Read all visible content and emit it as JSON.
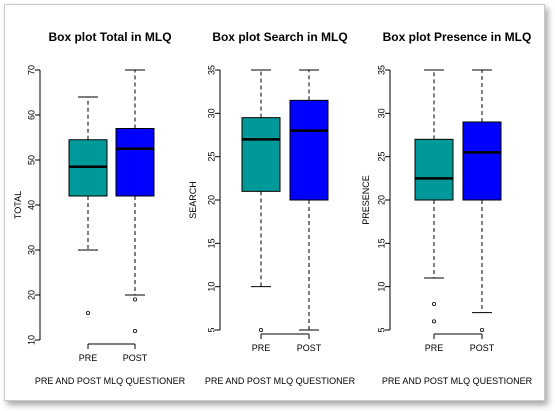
{
  "colors": {
    "pre": "#009999",
    "post": "#0000ff",
    "frame_border": "#c9c9c9"
  },
  "chart_data": [
    {
      "type": "boxplot",
      "title": "Box plot Total in MLQ",
      "xlabel": "PRE AND POST MLQ QUESTIONER",
      "ylabel": "TOTAL",
      "ylim": [
        10,
        70
      ],
      "yticks": [
        10,
        20,
        30,
        40,
        50,
        60,
        70
      ],
      "categories": [
        "PRE",
        "POST"
      ],
      "series": [
        {
          "name": "PRE",
          "min": 30,
          "q1": 42,
          "median": 48.5,
          "q3": 54.5,
          "max": 64,
          "outliers": [
            16
          ]
        },
        {
          "name": "POST",
          "min": 20,
          "q1": 42,
          "median": 52.5,
          "q3": 57,
          "max": 70,
          "outliers": [
            19,
            12
          ]
        }
      ]
    },
    {
      "type": "boxplot",
      "title": "Box plot Search in MLQ",
      "xlabel": "PRE AND POST MLQ QUESTIONER",
      "ylabel": "SEARCH",
      "ylim": [
        5,
        35
      ],
      "yticks": [
        5,
        10,
        15,
        20,
        25,
        30,
        35
      ],
      "categories": [
        "PRE",
        "POST"
      ],
      "series": [
        {
          "name": "PRE",
          "min": 10,
          "q1": 21,
          "median": 27,
          "q3": 29.5,
          "max": 35,
          "outliers": [
            5
          ]
        },
        {
          "name": "POST",
          "min": 5,
          "q1": 20,
          "median": 28,
          "q3": 31.5,
          "max": 35,
          "outliers": []
        }
      ]
    },
    {
      "type": "boxplot",
      "title": "Box plot Presence in MLQ",
      "xlabel": "PRE AND POST MLQ QUESTIONER",
      "ylabel": "PRESENCE",
      "ylim": [
        5,
        35
      ],
      "yticks": [
        5,
        10,
        15,
        20,
        25,
        30,
        35
      ],
      "categories": [
        "PRE",
        "POST"
      ],
      "series": [
        {
          "name": "PRE",
          "min": 11,
          "q1": 20,
          "median": 22.5,
          "q3": 27,
          "max": 35,
          "outliers": [
            8,
            6
          ]
        },
        {
          "name": "POST",
          "min": 7,
          "q1": 20,
          "median": 25.5,
          "q3": 29,
          "max": 35,
          "outliers": [
            5
          ]
        }
      ]
    }
  ]
}
